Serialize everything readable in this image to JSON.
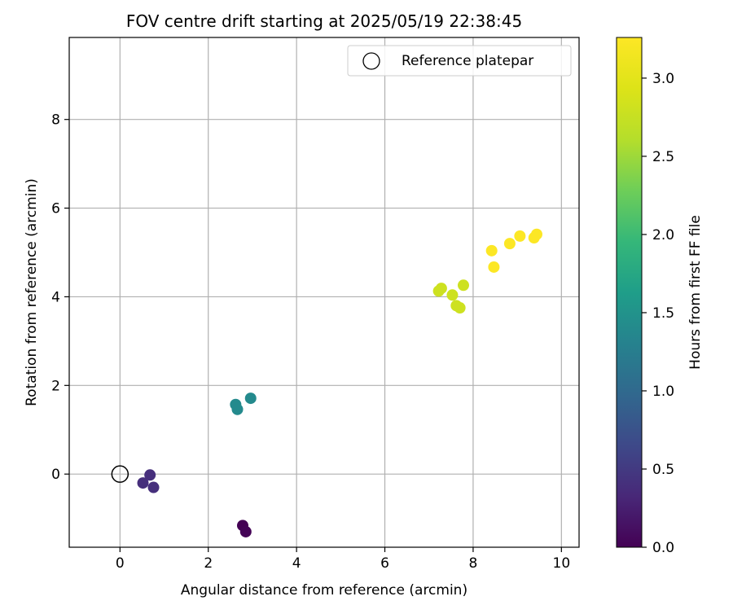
{
  "chart_data": {
    "type": "scatter",
    "title": "FOV centre drift starting at 2025/05/19 22:38:45",
    "xlabel": "Angular distance from reference (arcmin)",
    "ylabel": "Rotation from reference (arcmin)",
    "xlim": [
      -1.15,
      10.4
    ],
    "ylim": [
      -1.65,
      9.85
    ],
    "xticks": [
      0,
      2,
      4,
      6,
      8,
      10
    ],
    "yticks": [
      0,
      2,
      4,
      6,
      8
    ],
    "grid": true,
    "legend": {
      "position": "top-right",
      "entries": [
        "Reference platepar"
      ]
    },
    "reference_point": {
      "x": 0,
      "y": 0,
      "label": "Reference platepar"
    },
    "colorbar": {
      "label": "Hours from first FF file",
      "range": [
        0.0,
        3.26
      ],
      "ticks": [
        0.0,
        0.5,
        1.0,
        1.5,
        2.0,
        2.5,
        3.0
      ],
      "colormap": "viridis"
    },
    "points": [
      {
        "x": 2.78,
        "y": -1.16,
        "hours": 0.0
      },
      {
        "x": 2.85,
        "y": -1.3,
        "hours": 0.02
      },
      {
        "x": 0.68,
        "y": -0.02,
        "hours": 0.4
      },
      {
        "x": 0.52,
        "y": -0.2,
        "hours": 0.4
      },
      {
        "x": 0.76,
        "y": -0.3,
        "hours": 0.4
      },
      {
        "x": 2.62,
        "y": 1.57,
        "hours": 1.4
      },
      {
        "x": 2.66,
        "y": 1.46,
        "hours": 1.4
      },
      {
        "x": 2.96,
        "y": 1.71,
        "hours": 1.4
      },
      {
        "x": 7.22,
        "y": 4.13,
        "hours": 2.8
      },
      {
        "x": 7.28,
        "y": 4.19,
        "hours": 2.8
      },
      {
        "x": 7.53,
        "y": 4.04,
        "hours": 2.8
      },
      {
        "x": 7.78,
        "y": 4.26,
        "hours": 2.8
      },
      {
        "x": 7.62,
        "y": 3.8,
        "hours": 2.8
      },
      {
        "x": 7.7,
        "y": 3.75,
        "hours": 2.8
      },
      {
        "x": 8.42,
        "y": 5.04,
        "hours": 3.25
      },
      {
        "x": 8.47,
        "y": 4.67,
        "hours": 3.25
      },
      {
        "x": 8.83,
        "y": 5.2,
        "hours": 3.25
      },
      {
        "x": 9.06,
        "y": 5.37,
        "hours": 3.25
      },
      {
        "x": 9.38,
        "y": 5.33,
        "hours": 3.25
      },
      {
        "x": 9.44,
        "y": 5.41,
        "hours": 3.25
      }
    ]
  }
}
